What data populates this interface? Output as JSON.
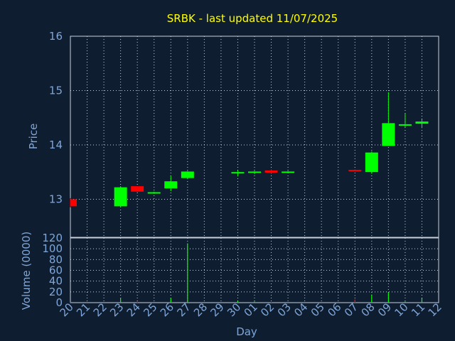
{
  "chart_data": [
    {
      "type": "candlestick",
      "title": "SRBK - last updated 11/07/2025",
      "ylabel": "Price",
      "ylim": [
        12.3,
        16
      ],
      "yticks": [
        "13",
        "14",
        "15",
        "16"
      ],
      "colors": {
        "up": "#00ff00",
        "down": "#ff0000",
        "background": "#0e1d30",
        "text": "#7fa6d8",
        "title": "#ffff00"
      },
      "categories": [
        "20",
        "21",
        "22",
        "23",
        "24",
        "25",
        "26",
        "27",
        "28",
        "29",
        "30",
        "01",
        "02",
        "03",
        "04",
        "05",
        "06",
        "07",
        "08",
        "09",
        "10",
        "11",
        "12"
      ],
      "candles": [
        {
          "x": "20",
          "open": 13.0,
          "high": 13.02,
          "low": 12.85,
          "close": 12.87
        },
        {
          "x": "23",
          "open": 12.87,
          "high": 13.24,
          "low": 12.85,
          "close": 13.22
        },
        {
          "x": "24",
          "open": 13.24,
          "high": 13.24,
          "low": 13.13,
          "close": 13.14
        },
        {
          "x": "25",
          "open": 13.11,
          "high": 13.14,
          "low": 13.1,
          "close": 13.13
        },
        {
          "x": "26",
          "open": 13.2,
          "high": 13.44,
          "low": 13.15,
          "close": 13.33
        },
        {
          "x": "27",
          "open": 13.39,
          "high": 13.52,
          "low": 13.37,
          "close": 13.51
        },
        {
          "x": "30",
          "open": 13.48,
          "high": 13.53,
          "low": 13.42,
          "close": 13.5
        },
        {
          "x": "01",
          "open": 13.49,
          "high": 13.52,
          "low": 13.46,
          "close": 13.51
        },
        {
          "x": "02",
          "open": 13.53,
          "high": 13.55,
          "low": 13.46,
          "close": 13.49
        },
        {
          "x": "03",
          "open": 13.49,
          "high": 13.52,
          "low": 13.48,
          "close": 13.51
        },
        {
          "x": "07",
          "open": 13.54,
          "high": 13.55,
          "low": 13.52,
          "close": 13.52
        },
        {
          "x": "08",
          "open": 13.5,
          "high": 13.88,
          "low": 13.47,
          "close": 13.86
        },
        {
          "x": "09",
          "open": 13.98,
          "high": 14.97,
          "low": 13.98,
          "close": 14.4
        },
        {
          "x": "10",
          "open": 14.36,
          "high": 14.58,
          "low": 14.32,
          "close": 14.38
        },
        {
          "x": "11",
          "open": 14.39,
          "high": 14.47,
          "low": 14.31,
          "close": 14.43
        }
      ]
    },
    {
      "type": "bar",
      "ylabel": "Volume (0000)",
      "xlabel": "Day",
      "ylim": [
        0,
        120
      ],
      "yticks": [
        "0",
        "20",
        "40",
        "60",
        "80",
        "100",
        "120"
      ],
      "categories": [
        "20",
        "21",
        "22",
        "23",
        "24",
        "25",
        "26",
        "27",
        "28",
        "29",
        "30",
        "01",
        "02",
        "03",
        "04",
        "05",
        "06",
        "07",
        "08",
        "09",
        "10",
        "11",
        "12"
      ],
      "bars": [
        {
          "x": "20",
          "value": 0.5,
          "dir": "down"
        },
        {
          "x": "23",
          "value": 9,
          "dir": "up"
        },
        {
          "x": "24",
          "value": 2,
          "dir": "down"
        },
        {
          "x": "25",
          "value": 1,
          "dir": "up"
        },
        {
          "x": "26",
          "value": 8,
          "dir": "up"
        },
        {
          "x": "27",
          "value": 110,
          "dir": "up"
        },
        {
          "x": "30",
          "value": 3,
          "dir": "up"
        },
        {
          "x": "01",
          "value": 2,
          "dir": "up"
        },
        {
          "x": "02",
          "value": 1,
          "dir": "down"
        },
        {
          "x": "03",
          "value": 1,
          "dir": "up"
        },
        {
          "x": "07",
          "value": 6,
          "dir": "down"
        },
        {
          "x": "08",
          "value": 15,
          "dir": "up"
        },
        {
          "x": "09",
          "value": 19,
          "dir": "up"
        },
        {
          "x": "10",
          "value": 2,
          "dir": "up"
        },
        {
          "x": "11",
          "value": 8,
          "dir": "up"
        }
      ]
    }
  ]
}
